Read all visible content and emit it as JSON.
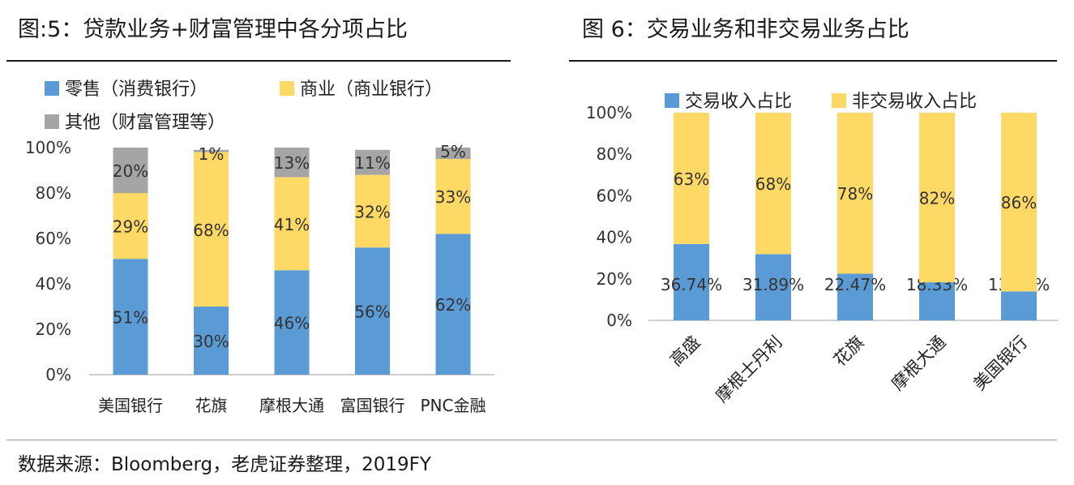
{
  "charts": [
    {
      "title": "图:5：贷款业务+财富管理中各分项占比",
      "chart_data": {
        "type": "bar",
        "stacked": true,
        "categories": [
          "美国银行",
          "花旗",
          "摩根大通",
          "富国银行",
          "PNC金融"
        ],
        "series": [
          {
            "name": "零售（消费银行）",
            "color": "#5b9bd5",
            "values": [
              51,
              30,
              46,
              56,
              62
            ],
            "labels": [
              "51%",
              "30%",
              "46%",
              "56%",
              "62%"
            ]
          },
          {
            "name": "商业（商业银行）",
            "color": "#ffd966",
            "values": [
              29,
              68,
              41,
              32,
              33
            ],
            "labels": [
              "29%",
              "68%",
              "41%",
              "32%",
              "33%"
            ]
          },
          {
            "name": "其他（财富管理等）",
            "color": "#a5a5a5",
            "values": [
              20,
              1,
              13,
              11,
              5
            ],
            "labels": [
              "20%",
              "1%",
              "13%",
              "11%",
              "5%"
            ]
          }
        ],
        "ylim": [
          0,
          100
        ],
        "yticks": [
          "0%",
          "20%",
          "40%",
          "60%",
          "80%",
          "100%"
        ],
        "legend_position": "top-left",
        "grid": false
      }
    },
    {
      "title": "图 6：交易业务和非交易业务占比",
      "chart_data": {
        "type": "bar",
        "stacked": true,
        "categories": [
          "高盛",
          "摩根士丹利",
          "花旗",
          "摩根大通",
          "美国银行"
        ],
        "series": [
          {
            "name": "交易收入占比",
            "color": "#5b9bd5",
            "values": [
              36.74,
              31.89,
              22.47,
              18.33,
              13.95
            ],
            "labels": [
              "36.74%",
              "31.89%",
              "22.47%",
              "18.33%",
              "13.95%"
            ]
          },
          {
            "name": "非交易收入占比",
            "color": "#ffd966",
            "values": [
              63.26,
              68.11,
              77.53,
              81.67,
              86.05
            ],
            "labels": [
              "63%",
              "68%",
              "78%",
              "82%",
              "86%"
            ]
          }
        ],
        "ylim": [
          0,
          100
        ],
        "yticks": [
          "0%",
          "20%",
          "40%",
          "60%",
          "80%",
          "100%"
        ],
        "legend_position": "top",
        "grid": false
      }
    }
  ],
  "source": "数据来源：Bloomberg，老虎证券整理，2019FY"
}
